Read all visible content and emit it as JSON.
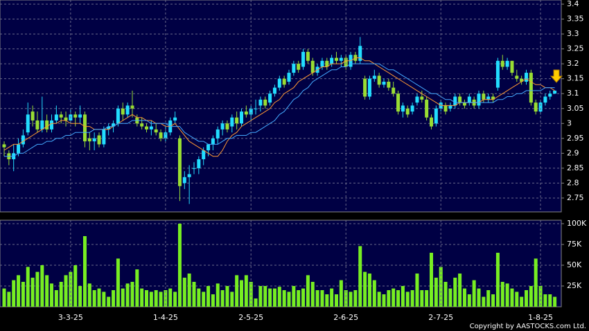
{
  "chart_data": [
    {
      "type": "candlestick",
      "up_color": "#22ddff",
      "down_color": "#99dd33",
      "grid": true,
      "open": [
        2.93,
        2.9,
        2.88,
        2.9,
        2.93,
        2.97,
        3.04,
        3.01,
        2.98,
        3.01,
        2.98,
        3.01,
        3.03,
        3.02,
        3.01,
        3.03,
        3.02,
        3.03,
        2.95,
        2.94,
        2.96,
        2.93,
        2.98,
        2.99,
        3.0,
        3.05,
        3.03,
        3.06,
        3.02,
        3.0,
        2.99,
        2.98,
        2.98,
        2.97,
        2.95,
        2.97,
        3.01,
        2.95,
        2.8,
        2.82,
        2.85,
        2.85,
        2.88,
        2.91,
        2.93,
        2.95,
        2.98,
        3.0,
        2.99,
        3.02,
        3.0,
        3.04,
        3.03,
        3.05,
        3.06,
        3.08,
        3.07,
        3.1,
        3.12,
        3.15,
        3.14,
        3.17,
        3.2,
        3.19,
        3.24,
        3.21,
        3.17,
        3.19,
        3.21,
        3.2,
        3.22,
        3.21,
        3.22,
        3.19,
        3.23,
        3.21,
        3.15,
        3.09,
        3.15,
        3.16,
        3.13,
        3.14,
        3.12,
        3.1,
        3.04,
        3.05,
        3.04,
        3.07,
        3.09,
        3.08,
        3.02,
        3.0,
        3.05,
        3.06,
        3.05,
        3.06,
        3.09,
        3.07,
        3.07,
        3.08,
        3.06,
        3.1,
        3.08,
        3.09,
        3.12,
        3.21,
        3.19,
        3.21,
        3.16,
        3.15,
        3.14,
        3.17,
        3.07,
        3.04,
        3.07,
        3.09,
        3.1
      ],
      "high": [
        2.94,
        2.91,
        2.93,
        2.95,
        2.98,
        3.07,
        3.06,
        3.04,
        3.09,
        3.03,
        3.03,
        3.06,
        3.04,
        3.04,
        3.05,
        3.04,
        3.06,
        3.04,
        2.97,
        2.97,
        2.97,
        2.99,
        3.0,
        3.01,
        3.06,
        3.07,
        3.07,
        3.11,
        3.03,
        3.02,
        3.0,
        3.01,
        3.0,
        2.98,
        2.99,
        3.02,
        3.04,
        2.96,
        2.84,
        2.86,
        2.87,
        2.89,
        2.92,
        2.93,
        2.96,
        2.99,
        3.01,
        3.01,
        3.03,
        3.04,
        3.05,
        3.06,
        3.06,
        3.08,
        3.09,
        3.09,
        3.11,
        3.13,
        3.16,
        3.16,
        3.18,
        3.21,
        3.21,
        3.25,
        3.25,
        3.22,
        3.2,
        3.22,
        3.22,
        3.23,
        3.24,
        3.23,
        3.23,
        3.24,
        3.24,
        3.29,
        3.16,
        3.16,
        3.18,
        3.17,
        3.15,
        3.15,
        3.14,
        3.11,
        3.07,
        3.06,
        3.07,
        3.1,
        3.11,
        3.09,
        3.03,
        3.06,
        3.08,
        3.07,
        3.07,
        3.1,
        3.1,
        3.08,
        3.1,
        3.09,
        3.11,
        3.11,
        3.1,
        3.1,
        3.22,
        3.23,
        3.22,
        3.21,
        3.18,
        3.16,
        3.18,
        3.18,
        3.08,
        3.08,
        3.1,
        3.11,
        3.11
      ],
      "low": [
        2.89,
        2.86,
        2.84,
        2.89,
        2.92,
        2.96,
        2.99,
        2.97,
        2.97,
        2.97,
        2.97,
        3.0,
        3.0,
        2.99,
        3.0,
        2.99,
        3.0,
        2.92,
        2.91,
        2.91,
        2.92,
        2.92,
        2.96,
        2.97,
        2.99,
        3.01,
        3.02,
        3.02,
        2.99,
        2.98,
        2.97,
        2.96,
        2.96,
        2.94,
        2.94,
        2.96,
        3.0,
        2.74,
        2.78,
        2.73,
        2.83,
        2.83,
        2.86,
        2.89,
        2.91,
        2.93,
        2.96,
        2.97,
        2.97,
        2.98,
        2.99,
        3.02,
        3.01,
        3.03,
        3.04,
        3.05,
        3.06,
        3.09,
        3.11,
        3.12,
        3.13,
        3.16,
        3.17,
        3.18,
        3.2,
        3.16,
        3.16,
        3.18,
        3.18,
        3.19,
        3.2,
        3.19,
        3.18,
        3.18,
        3.2,
        3.2,
        3.08,
        3.08,
        3.14,
        3.12,
        3.12,
        3.11,
        3.09,
        3.03,
        3.02,
        3.02,
        3.03,
        3.06,
        3.07,
        3.01,
        2.98,
        2.99,
        3.04,
        3.03,
        3.04,
        3.05,
        3.06,
        3.05,
        3.06,
        3.05,
        3.05,
        3.07,
        3.07,
        3.07,
        3.11,
        3.18,
        3.18,
        3.16,
        3.14,
        3.13,
        3.13,
        3.06,
        3.03,
        3.03,
        3.06,
        3.08,
        3.1
      ],
      "close": [
        2.92,
        2.88,
        2.9,
        2.93,
        2.96,
        3.03,
        3.01,
        2.98,
        3.01,
        2.98,
        3.01,
        3.03,
        3.02,
        3.01,
        3.03,
        3.02,
        3.03,
        2.94,
        2.94,
        2.95,
        2.93,
        2.98,
        2.99,
        3.0,
        3.05,
        3.03,
        3.06,
        3.05,
        3.0,
        2.99,
        2.98,
        2.99,
        2.97,
        2.95,
        2.97,
        3.01,
        3.02,
        2.79,
        2.82,
        2.83,
        2.85,
        2.88,
        2.91,
        2.93,
        2.95,
        2.98,
        3.0,
        2.98,
        3.02,
        3.0,
        3.04,
        3.03,
        3.05,
        3.05,
        3.08,
        3.06,
        3.1,
        3.12,
        3.15,
        3.13,
        3.17,
        3.2,
        3.18,
        3.24,
        3.21,
        3.17,
        3.19,
        3.21,
        3.19,
        3.22,
        3.21,
        3.22,
        3.19,
        3.23,
        3.21,
        3.26,
        3.09,
        3.15,
        3.16,
        3.13,
        3.14,
        3.12,
        3.1,
        3.04,
        3.06,
        3.03,
        3.06,
        3.09,
        3.08,
        3.02,
        2.99,
        3.05,
        3.07,
        3.04,
        3.06,
        3.09,
        3.07,
        3.06,
        3.09,
        3.06,
        3.1,
        3.08,
        3.09,
        3.08,
        3.21,
        3.19,
        3.21,
        3.17,
        3.15,
        3.14,
        3.17,
        3.07,
        3.04,
        3.07,
        3.09,
        3.1,
        3.11
      ],
      "series": [
        {
          "color": "#ff9933",
          "values": [
            2.91,
            2.92,
            2.93,
            2.93,
            2.94,
            2.95,
            2.96,
            2.97,
            2.98,
            2.99,
            3.0,
            3.0,
            3.01,
            3.01,
            3.0,
            3.0,
            3.0,
            2.99,
            2.99,
            2.98,
            2.98,
            2.98,
            2.98,
            2.99,
            3.0,
            3.01,
            3.02,
            3.03,
            3.02,
            3.02,
            3.01,
            3.01,
            3.0,
            3.0,
            2.99,
            2.99,
            3.0,
            2.98,
            2.96,
            2.94,
            2.93,
            2.92,
            2.91,
            2.9,
            2.89,
            2.89,
            2.91,
            2.94,
            2.96,
            2.97,
            2.99,
            3.0,
            3.01,
            3.02,
            3.03,
            3.04,
            3.05,
            3.07,
            3.08,
            3.1,
            3.11,
            3.12,
            3.14,
            3.15,
            3.16,
            3.17,
            3.18,
            3.19,
            3.19,
            3.2,
            3.2,
            3.2,
            3.21,
            3.21,
            3.22,
            3.22,
            3.21,
            3.21,
            3.2,
            3.19,
            3.18,
            3.17,
            3.16,
            3.15,
            3.14,
            3.13,
            3.12,
            3.11,
            3.1,
            3.09,
            3.08,
            3.07,
            3.06,
            3.06,
            3.06,
            3.06,
            3.07,
            3.07,
            3.07,
            3.07,
            3.07,
            3.08,
            3.08,
            3.08,
            3.09,
            3.1,
            3.11,
            3.12,
            3.13,
            3.14,
            3.15,
            3.14,
            3.13,
            3.13,
            3.12,
            3.12,
            3.11
          ]
        },
        {
          "color": "#44aaff",
          "values": [
            2.89,
            2.89,
            2.89,
            2.9,
            2.9,
            2.91,
            2.92,
            2.93,
            2.93,
            2.94,
            2.94,
            2.95,
            2.95,
            2.96,
            2.96,
            2.97,
            2.97,
            2.97,
            2.97,
            2.98,
            2.98,
            2.98,
            2.99,
            2.99,
            3.0,
            3.0,
            3.0,
            3.01,
            3.01,
            3.01,
            3.01,
            3.0,
            3.0,
            3.0,
            3.0,
            2.99,
            2.99,
            2.99,
            2.97,
            2.96,
            2.95,
            2.94,
            2.94,
            2.93,
            2.93,
            2.93,
            2.94,
            2.95,
            2.95,
            2.96,
            2.96,
            2.96,
            2.97,
            2.97,
            2.98,
            2.99,
            3.0,
            3.01,
            3.03,
            3.04,
            3.06,
            3.08,
            3.09,
            3.11,
            3.12,
            3.14,
            3.15,
            3.16,
            3.17,
            3.18,
            3.18,
            3.19,
            3.19,
            3.2,
            3.2,
            3.2,
            3.2,
            3.2,
            3.2,
            3.2,
            3.19,
            3.18,
            3.18,
            3.17,
            3.16,
            3.15,
            3.14,
            3.13,
            3.12,
            3.11,
            3.1,
            3.1,
            3.09,
            3.08,
            3.08,
            3.07,
            3.07,
            3.07,
            3.07,
            3.07,
            3.07,
            3.07,
            3.07,
            3.07,
            3.08,
            3.08,
            3.09,
            3.09,
            3.1,
            3.1,
            3.11,
            3.11,
            3.11,
            3.11,
            3.12,
            3.12,
            3.12
          ]
        }
      ],
      "ylim": [
        2.7,
        3.4
      ],
      "yticks": [
        2.75,
        2.8,
        2.85,
        2.9,
        2.95,
        3,
        3.05,
        3.1,
        3.15,
        3.2,
        3.25,
        3.3,
        3.35,
        3.4
      ]
    },
    {
      "type": "bar",
      "color": "#77ee22",
      "grid": true,
      "categories": [
        null,
        null,
        null,
        null,
        null,
        null,
        null,
        null,
        null,
        null,
        null,
        null,
        null,
        null,
        "3-3-25",
        null,
        null,
        null,
        null,
        null,
        null,
        null,
        null,
        null,
        null,
        null,
        null,
        null,
        null,
        null,
        null,
        null,
        null,
        null,
        "1-4-25",
        null,
        null,
        null,
        null,
        null,
        null,
        null,
        null,
        null,
        null,
        null,
        null,
        null,
        null,
        null,
        null,
        null,
        "2-5-25",
        null,
        null,
        null,
        null,
        null,
        null,
        null,
        null,
        null,
        null,
        null,
        null,
        null,
        null,
        null,
        null,
        null,
        null,
        null,
        "2-6-25",
        null,
        null,
        null,
        null,
        null,
        null,
        null,
        null,
        null,
        null,
        null,
        null,
        null,
        null,
        null,
        null,
        null,
        null,
        null,
        "2-7-25",
        null,
        null,
        null,
        null,
        null,
        null,
        null,
        null,
        null,
        null,
        null,
        null,
        null,
        null,
        null,
        null,
        null,
        null,
        null,
        null,
        "1-8-25",
        null,
        null,
        null
      ],
      "values": [
        22000,
        18000,
        32000,
        38000,
        30000,
        48000,
        35000,
        42000,
        50000,
        38000,
        28000,
        20000,
        30000,
        38000,
        42000,
        50000,
        25000,
        85000,
        28000,
        20000,
        22000,
        18000,
        12000,
        20000,
        58000,
        22000,
        28000,
        30000,
        45000,
        22000,
        20000,
        18000,
        20000,
        18000,
        20000,
        22000,
        18000,
        100000,
        35000,
        40000,
        30000,
        22000,
        18000,
        25000,
        15000,
        28000,
        20000,
        25000,
        18000,
        38000,
        32000,
        38000,
        30000,
        10000,
        25000,
        25000,
        22000,
        22000,
        24000,
        20000,
        18000,
        25000,
        20000,
        22000,
        38000,
        30000,
        20000,
        20000,
        15000,
        22000,
        15000,
        32000,
        20000,
        18000,
        20000,
        73000,
        42000,
        40000,
        32000,
        18000,
        15000,
        20000,
        22000,
        20000,
        25000,
        18000,
        20000,
        40000,
        20000,
        20000,
        65000,
        35000,
        48000,
        30000,
        22000,
        35000,
        40000,
        22000,
        15000,
        32000,
        22000,
        12000,
        20000,
        15000,
        65000,
        30000,
        28000,
        22000,
        18000,
        12000,
        20000,
        25000,
        58000,
        25000,
        15000,
        15000,
        12000
      ],
      "ylim": [
        0,
        100000
      ],
      "yticks": [
        {
          "value": 25000,
          "label": "25K"
        },
        {
          "value": 50000,
          "label": "50K"
        },
        {
          "value": 75000,
          "label": "75K"
        },
        {
          "value": 100000,
          "label": "100K"
        }
      ]
    }
  ],
  "copyright": "Copyright by AASTOCKS.com Ltd."
}
